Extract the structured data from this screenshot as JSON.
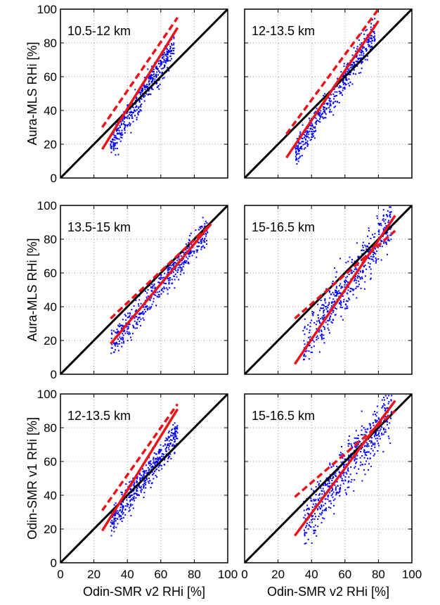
{
  "chart_data": [
    {
      "type": "scatter",
      "title": "10.5-12 km",
      "xlabel": "",
      "ylabel": "Aura-MLS RHi [%]",
      "xlim": [
        0,
        100
      ],
      "ylim": [
        0,
        100
      ],
      "xticks": [
        "",
        "",
        "",
        "",
        "",
        ""
      ],
      "yticks": [
        "0",
        "20",
        "40",
        "60",
        "80",
        "100"
      ],
      "grid": true,
      "cloud": {
        "x_range": [
          30,
          68
        ],
        "center": [
          46,
          44
        ],
        "slope": 1.55,
        "spread": 6,
        "n": 420
      },
      "fit_solid": [
        [
          25,
          17
        ],
        [
          70,
          89
        ]
      ],
      "fit_dashed": [
        [
          25,
          30
        ],
        [
          70,
          95
        ]
      ]
    },
    {
      "type": "scatter",
      "title": "12-13.5 km",
      "xlabel": "",
      "ylabel": "",
      "xlim": [
        0,
        100
      ],
      "ylim": [
        0,
        100
      ],
      "xticks": [
        "",
        "",
        "",
        "",
        "",
        ""
      ],
      "yticks": [
        "",
        "",
        "",
        "",
        "",
        ""
      ],
      "grid": true,
      "cloud": {
        "x_range": [
          30,
          78
        ],
        "center": [
          52,
          47
        ],
        "slope": 1.5,
        "spread": 6,
        "n": 450
      },
      "fit_solid": [
        [
          25,
          12
        ],
        [
          80,
          93
        ]
      ],
      "fit_dashed": [
        [
          25,
          26
        ],
        [
          80,
          100
        ]
      ]
    },
    {
      "type": "scatter",
      "title": "13.5-15 km",
      "xlabel": "",
      "ylabel": "Aura-MLS RHi [%]",
      "xlim": [
        0,
        100
      ],
      "ylim": [
        0,
        100
      ],
      "xticks": [
        "",
        "",
        "",
        "",
        "",
        ""
      ],
      "yticks": [
        "0",
        "20",
        "40",
        "60",
        "80",
        "100"
      ],
      "grid": true,
      "cloud": {
        "x_range": [
          30,
          88
        ],
        "center": [
          58,
          50
        ],
        "slope": 1.2,
        "spread": 6,
        "n": 500
      },
      "fit_solid": [
        [
          30,
          18
        ],
        [
          90,
          89
        ]
      ],
      "fit_dashed": [
        [
          30,
          33
        ],
        [
          90,
          89
        ]
      ]
    },
    {
      "type": "scatter",
      "title": "15-16.5 km",
      "xlabel": "",
      "ylabel": "",
      "xlim": [
        0,
        100
      ],
      "ylim": [
        0,
        100
      ],
      "xticks": [
        "",
        "",
        "",
        "",
        "",
        ""
      ],
      "yticks": [
        "",
        "",
        "",
        "",
        "",
        ""
      ],
      "grid": true,
      "cloud": {
        "x_range": [
          35,
          88
        ],
        "center": [
          66,
          60
        ],
        "slope": 1.4,
        "spread": 10,
        "n": 500
      },
      "fit_solid": [
        [
          30,
          6
        ],
        [
          90,
          94
        ]
      ],
      "fit_dashed": [
        [
          30,
          33
        ],
        [
          90,
          85
        ]
      ]
    },
    {
      "type": "scatter",
      "title": "12-13.5 km",
      "xlabel": "Odin-SMR v2 RHi [%]",
      "ylabel": "Odin-SMR v1 RHi [%]",
      "xlim": [
        0,
        100
      ],
      "ylim": [
        0,
        100
      ],
      "xticks": [
        "0",
        "20",
        "40",
        "60",
        "80",
        "100"
      ],
      "yticks": [
        "0",
        "20",
        "40",
        "60",
        "80",
        "100"
      ],
      "grid": true,
      "cloud": {
        "x_range": [
          30,
          70
        ],
        "center": [
          50,
          50
        ],
        "slope": 1.3,
        "spread": 6,
        "n": 450
      },
      "fit_solid": [
        [
          25,
          19
        ],
        [
          70,
          91
        ]
      ],
      "fit_dashed": [
        [
          25,
          31
        ],
        [
          70,
          94
        ]
      ]
    },
    {
      "type": "scatter",
      "title": "15-16.5 km",
      "xlabel": "Odin-SMR v2 RHi [%]",
      "ylabel": "",
      "xlim": [
        0,
        100
      ],
      "ylim": [
        0,
        100
      ],
      "xticks": [
        "0",
        "20",
        "40",
        "60",
        "80",
        "100"
      ],
      "yticks": [
        "",
        "",
        "",
        "",
        "",
        ""
      ],
      "grid": true,
      "cloud": {
        "x_range": [
          35,
          88
        ],
        "center": [
          68,
          65
        ],
        "slope": 1.3,
        "spread": 10,
        "n": 550
      },
      "fit_solid": [
        [
          30,
          16
        ],
        [
          90,
          96
        ]
      ],
      "fit_dashed": [
        [
          30,
          39
        ],
        [
          90,
          90
        ]
      ]
    }
  ],
  "colors": {
    "points": "#0000ff",
    "fit": "#e8141a",
    "identity": "#000000",
    "grid": "#9a9a9a"
  }
}
